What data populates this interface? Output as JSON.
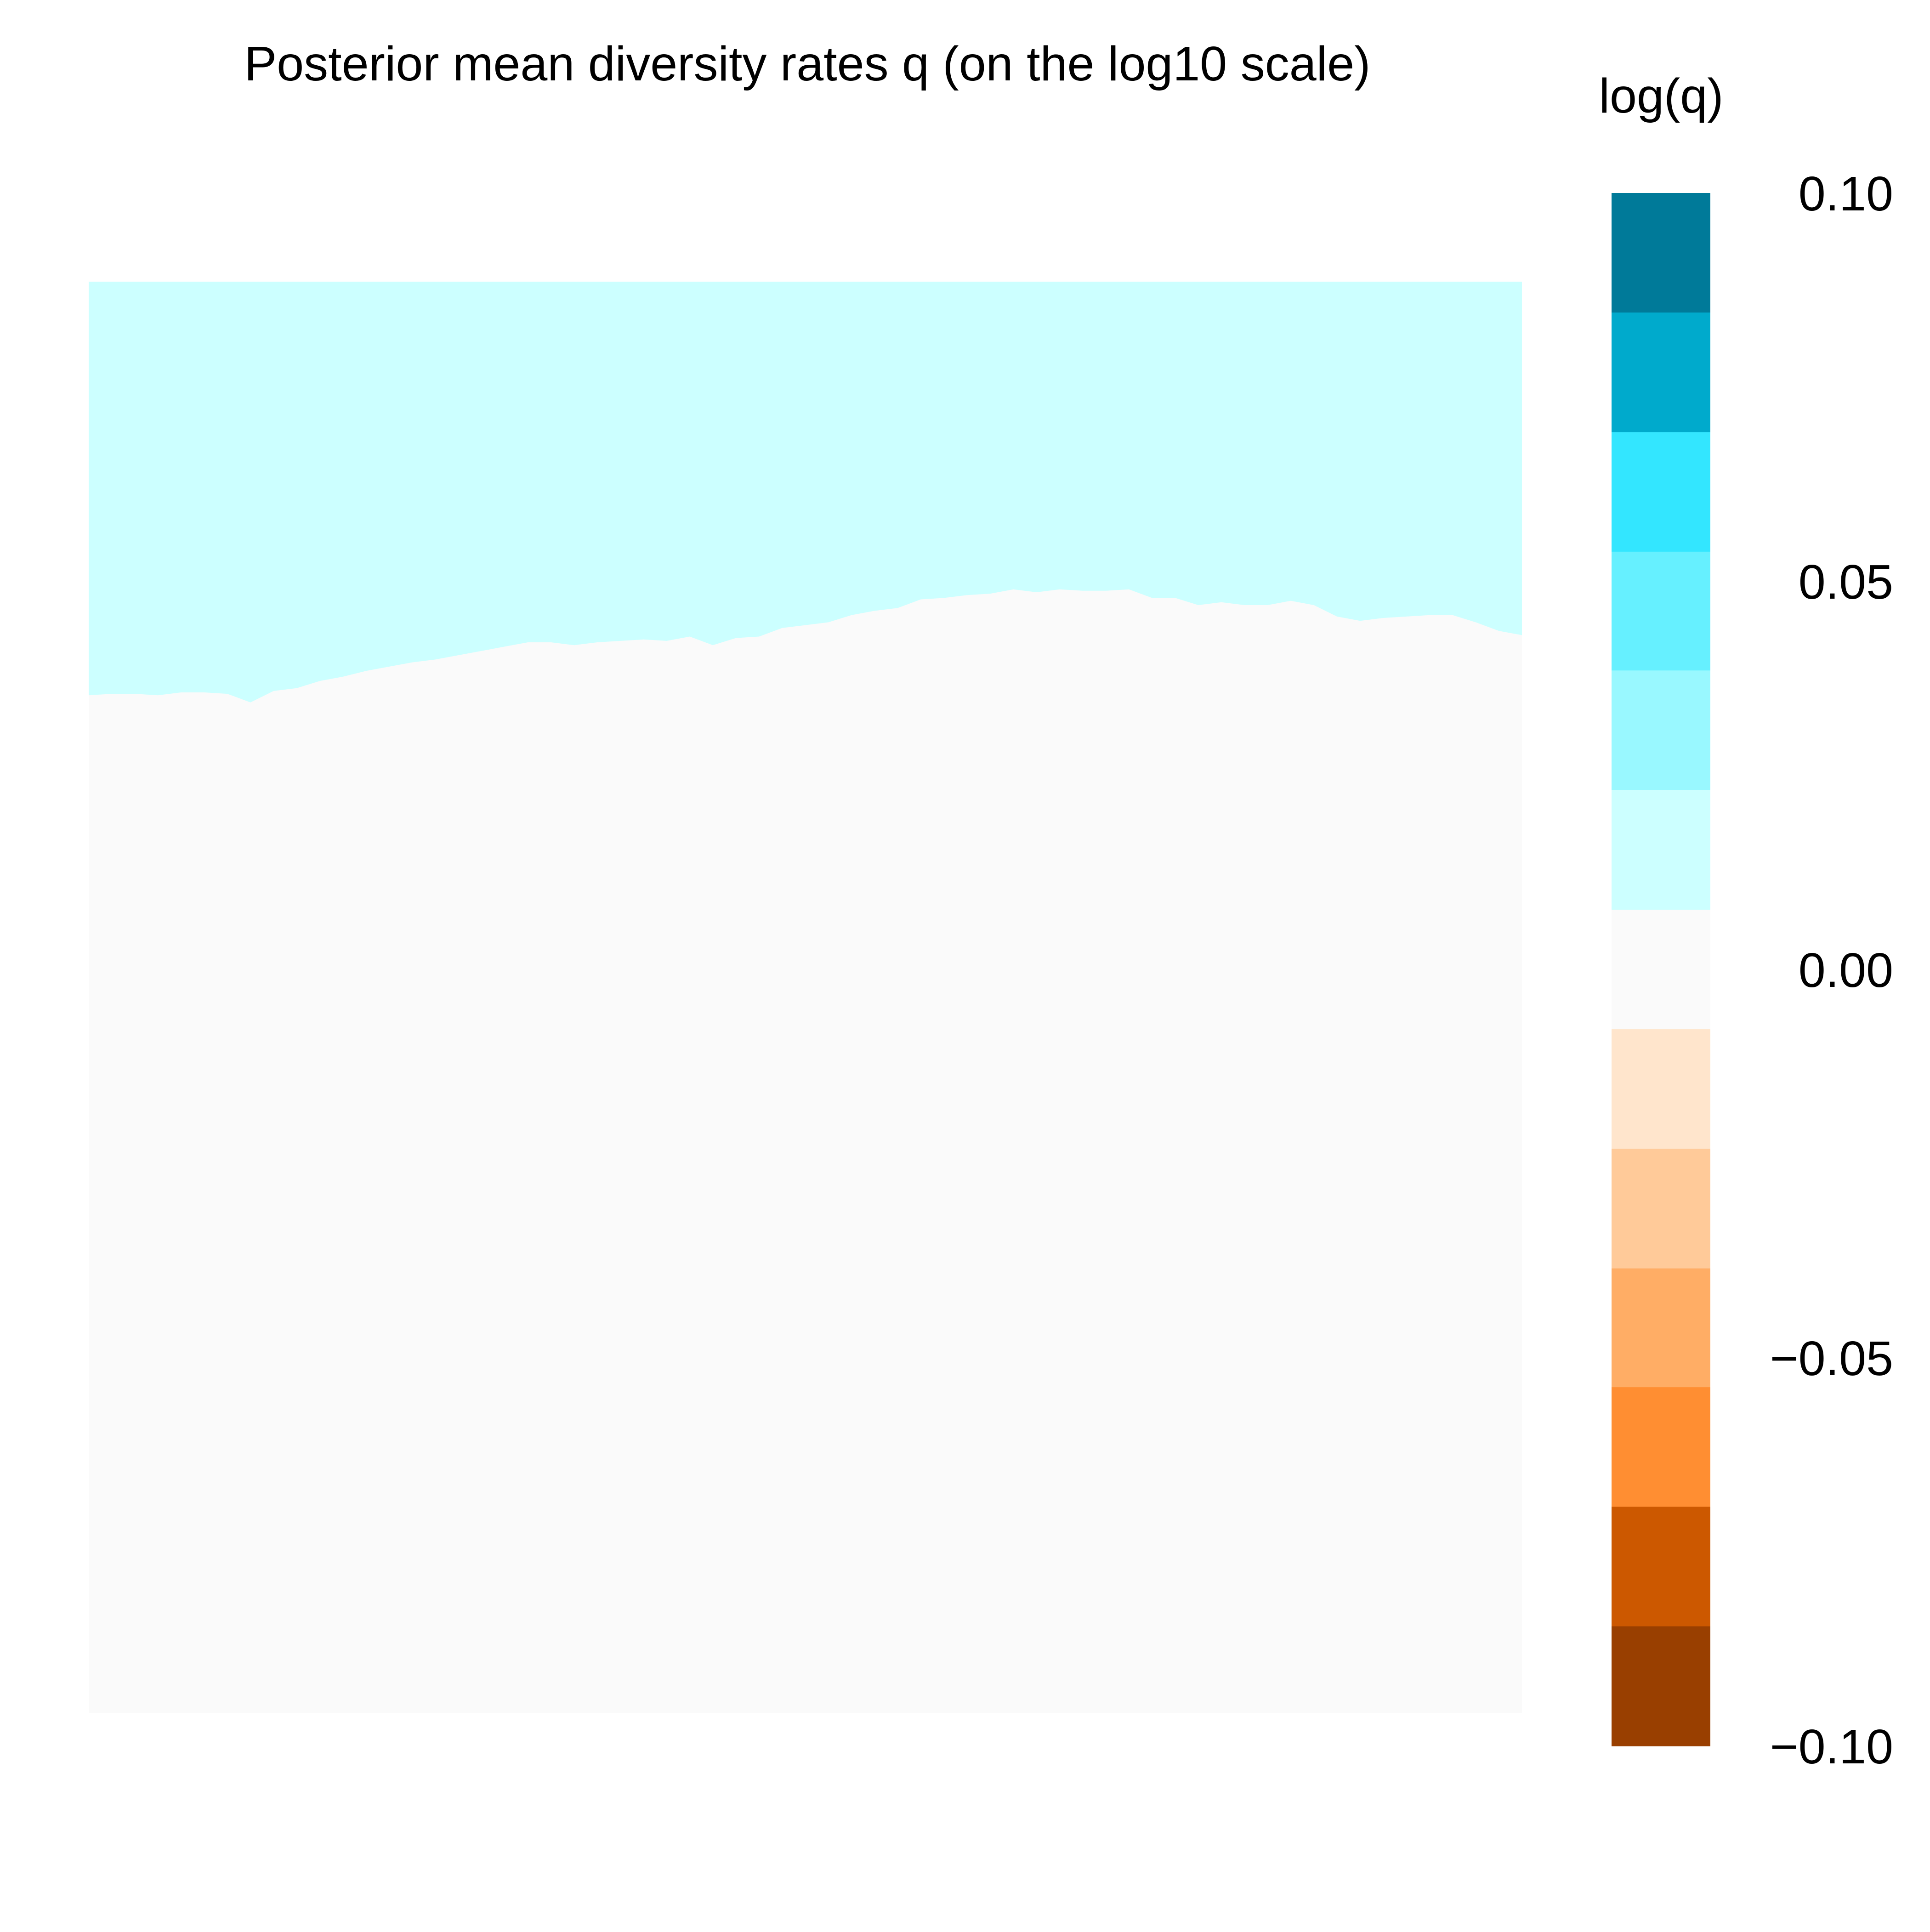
{
  "chart_data": {
    "type": "heatmap",
    "title": "Posterior mean diversity rates q (on the log10 scale)",
    "xlabel": "",
    "ylabel": "",
    "grid": false,
    "legend_placement": "right",
    "legend": {
      "title": "log(q)",
      "range": [
        -0.1,
        0.1
      ],
      "tick_values": [
        0.1,
        0.05,
        0.0,
        -0.05,
        -0.1
      ],
      "tick_labels": [
        "0.10",
        "0.05",
        "0.00",
        "−0.05",
        "−0.10"
      ],
      "bins": [
        {
          "from": 0.0846,
          "to": 0.1,
          "color": "#007A99"
        },
        {
          "from": 0.0692,
          "to": 0.0846,
          "color": "#00AACC"
        },
        {
          "from": 0.0538,
          "to": 0.0692,
          "color": "#33E6FF"
        },
        {
          "from": 0.0385,
          "to": 0.0538,
          "color": "#66F0FF"
        },
        {
          "from": 0.0231,
          "to": 0.0385,
          "color": "#99F8FF"
        },
        {
          "from": 0.0077,
          "to": 0.0231,
          "color": "#CCFFFF"
        },
        {
          "from": -0.0077,
          "to": 0.0077,
          "color": "#FAFAFA"
        },
        {
          "from": -0.0231,
          "to": -0.0077,
          "color": "#FFE5CC"
        },
        {
          "from": -0.0385,
          "to": -0.0231,
          "color": "#FFCA99"
        },
        {
          "from": -0.0538,
          "to": -0.0385,
          "color": "#FFAD65"
        },
        {
          "from": -0.0692,
          "to": -0.0538,
          "color": "#FF8E32"
        },
        {
          "from": -0.0846,
          "to": -0.0692,
          "color": "#CC5800"
        },
        {
          "from": -0.1,
          "to": -0.0846,
          "color": "#993F00"
        }
      ]
    },
    "regions": [
      {
        "name": "upper",
        "value_bin_color": "#CCFFFF"
      },
      {
        "name": "lower",
        "value_bin_color": "#FAFAFA"
      }
    ],
    "boundary_profile": [
      0.711,
      0.712,
      0.712,
      0.711,
      0.713,
      0.713,
      0.712,
      0.706,
      0.714,
      0.716,
      0.721,
      0.724,
      0.728,
      0.731,
      0.734,
      0.736,
      0.739,
      0.742,
      0.745,
      0.748,
      0.748,
      0.746,
      0.748,
      0.749,
      0.75,
      0.749,
      0.752,
      0.746,
      0.751,
      0.752,
      0.758,
      0.76,
      0.762,
      0.767,
      0.77,
      0.772,
      0.778,
      0.779,
      0.781,
      0.782,
      0.785,
      0.783,
      0.785,
      0.784,
      0.784,
      0.785,
      0.779,
      0.779,
      0.774,
      0.776,
      0.774,
      0.774,
      0.777,
      0.774,
      0.766,
      0.763,
      0.765,
      0.766,
      0.767,
      0.767,
      0.762,
      0.756,
      0.753
    ]
  }
}
